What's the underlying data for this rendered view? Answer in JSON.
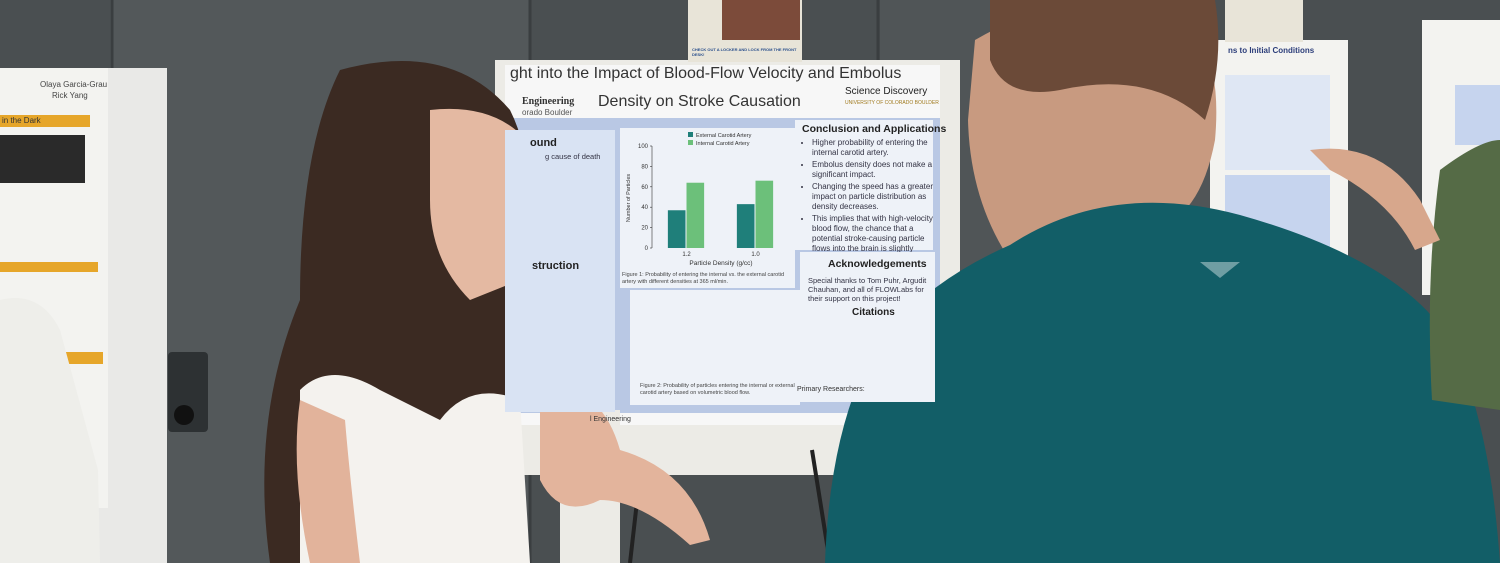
{
  "poster": {
    "title_line1": "ght into the Impact of Blood-Flow Velocity and Embolus",
    "title_line2": "Density on Stroke Causation",
    "logo_name": "Science Discovery",
    "logo_sub": "UNIVERSITY OF COLORADO BOULDER",
    "dept": "Engineering",
    "dept_sub": "orado Boulder",
    "left_heading1": "ound",
    "left_text1": "g cause of death",
    "left_heading2": "struction",
    "conclusion_heading": "Conclusion and Applications",
    "conclusion_bullets": [
      "Higher probability of entering the internal carotid artery.",
      "Embolus density does not make a significant impact.",
      "Changing the speed has a greater impact on particle distribution as density decreases.",
      "This implies that with high-velocity blood flow, the chance that a potential stroke-causing particle flows into the brain is slightly decreased."
    ],
    "ack_heading": "Acknowledgements",
    "ack_text": "Special thanks to Tom Puhr, Argudit Chauhan, and all of FLOWLabs for their support on this project!",
    "citations_heading": "Citations",
    "figure1_caption": "Figure 1: Probability of entering the internal vs. the external carotid artery with different densities at 365 ml/min.",
    "figure2_caption": "Figure 2: Probability of particles entering the internal or external carotid artery based on volumetric blood flow.",
    "researchers": "Primary Researchers:",
    "footer": "l Engineering",
    "figure1": {
      "x_label": "Particle Density (g/cc)",
      "y_label": "Number of Particles",
      "categories": [
        "1.2",
        "1.0"
      ],
      "series": [
        {
          "name": "External Carotid Artery",
          "color": "#1f7f7a",
          "values": [
            37,
            43
          ]
        },
        {
          "name": "Internal Carotid Artery",
          "color": "#6cc07a",
          "values": [
            64,
            66
          ]
        }
      ],
      "ylim": [
        0,
        100
      ],
      "yticks": [
        0,
        20,
        40,
        60,
        80,
        100
      ]
    }
  },
  "left_poster": {
    "authors": [
      "Olaya Garcia-Grau",
      "Rick Yang"
    ],
    "heading": "in the Dark"
  },
  "right_poster": {
    "heading": "ns to Initial Conditions"
  },
  "flyer": {
    "text": "CHECK OUT A LOCKER AND LOCK FROM THE FRONT DESK!"
  }
}
